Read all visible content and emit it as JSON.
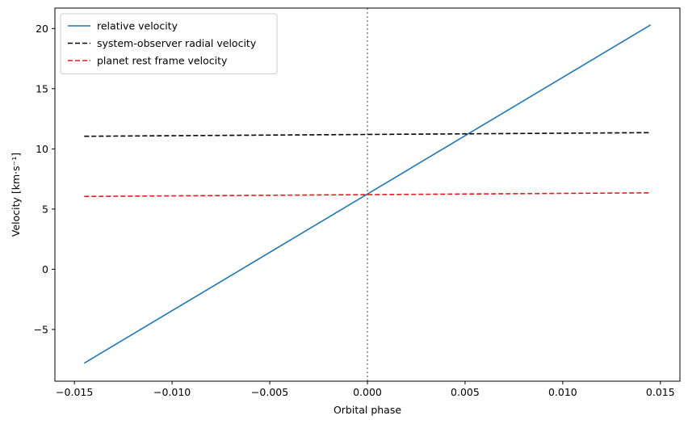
{
  "chart_data": {
    "type": "line",
    "xlabel": "Orbital phase",
    "ylabel": "Velocity [km·s⁻¹]",
    "xlim": [
      -0.016,
      0.016
    ],
    "ylim": [
      -9.3,
      21.7
    ],
    "xticks": [
      -0.015,
      -0.01,
      -0.005,
      0.0,
      0.005,
      0.01,
      0.015
    ],
    "xtick_labels": [
      "−0.015",
      "−0.010",
      "−0.005",
      "0.000",
      "0.005",
      "0.010",
      "0.015"
    ],
    "yticks": [
      -5,
      0,
      5,
      10,
      15,
      20
    ],
    "ytick_labels": [
      "−5",
      "0",
      "5",
      "10",
      "15",
      "20"
    ],
    "grid": false,
    "legend_position": "top-left",
    "vline": {
      "x": 0.0,
      "color": "#808080",
      "style": "dotted"
    },
    "series": [
      {
        "name": "relative velocity",
        "color": "#1f77b4",
        "style": "solid",
        "x": [
          -0.0145,
          0.0145
        ],
        "y": [
          -7.8,
          20.3
        ]
      },
      {
        "name": "system-observer radial velocity",
        "color": "#000000",
        "style": "dashed",
        "x": [
          -0.0145,
          0.0145
        ],
        "y": [
          11.05,
          11.35
        ]
      },
      {
        "name": "planet rest frame velocity",
        "color": "#e41a1c",
        "style": "dashed",
        "x": [
          -0.0145,
          0.0145
        ],
        "y": [
          6.05,
          6.35
        ]
      }
    ]
  }
}
